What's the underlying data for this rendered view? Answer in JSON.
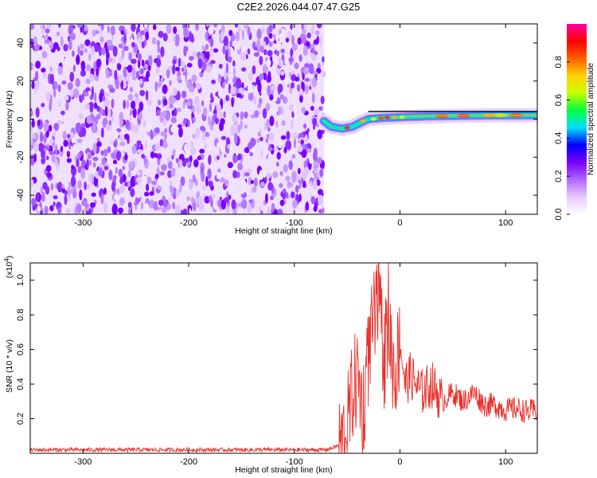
{
  "title": "C2E2.2026.044.07.47.G25",
  "chart_data": [
    {
      "type": "heatmap",
      "xlabel": "Height of straight line (km)",
      "ylabel": "Frequency (Hz)",
      "xlim": [
        -350,
        130
      ],
      "ylim": [
        -50,
        50
      ],
      "xticks": [
        -300,
        -200,
        -100,
        0,
        100
      ],
      "yticks": [
        -40,
        -20,
        0,
        20,
        40
      ],
      "noise_region_x": [
        -350,
        -72
      ],
      "signal_band": [
        {
          "x": -72,
          "y": -1
        },
        {
          "x": -65,
          "y": -4
        },
        {
          "x": -55,
          "y": -5
        },
        {
          "x": -45,
          "y": -4
        },
        {
          "x": -38,
          "y": -2
        },
        {
          "x": -30,
          "y": 0
        },
        {
          "x": -20,
          "y": 0.5
        },
        {
          "x": -10,
          "y": 0.8
        },
        {
          "x": 0,
          "y": 1
        },
        {
          "x": 30,
          "y": 1.5
        },
        {
          "x": 60,
          "y": 1.8
        },
        {
          "x": 90,
          "y": 2
        },
        {
          "x": 130,
          "y": 2
        }
      ],
      "colorbar": {
        "label": "Normalized spectral amplitude",
        "range": [
          0,
          1
        ],
        "ticks": [
          0.0,
          0.2,
          0.4,
          0.6,
          0.8
        ],
        "colors": [
          "#ffffff",
          "#e6c8ff",
          "#b266ff",
          "#7a00ff",
          "#0000ff",
          "#00e0ff",
          "#00ff40",
          "#c8ff00",
          "#ffd200",
          "#ff6000",
          "#ff0000",
          "#ff00a0"
        ]
      },
      "grid": false
    },
    {
      "type": "line",
      "xlabel": "Height of straight line (km)",
      "ylabel": "SNR (10 * v/v)",
      "y_scale_label_base": "(x10",
      "y_scale_label_exp": "4",
      "y_scale_label_close": ")",
      "xlim": [
        -350,
        130
      ],
      "ylim": [
        0,
        1.1
      ],
      "xticks": [
        -300,
        -200,
        -100,
        0,
        100
      ],
      "yticks": [
        0.2,
        0.4,
        0.6,
        0.8,
        1.0
      ],
      "series": [
        {
          "color": "#e8302a",
          "x": [
            -350,
            -300,
            -250,
            -200,
            -150,
            -100,
            -70,
            -55,
            -50,
            -45,
            -40,
            -35,
            -30,
            -25,
            -20,
            -15,
            -10,
            -5,
            0,
            5,
            10,
            20,
            30,
            40,
            50,
            60,
            70,
            80,
            90,
            100,
            110,
            120,
            130
          ],
          "y": [
            0.02,
            0.02,
            0.02,
            0.02,
            0.02,
            0.02,
            0.02,
            0.05,
            0.15,
            0.35,
            0.45,
            0.25,
            0.55,
            0.75,
            0.85,
            0.55,
            0.7,
            0.45,
            0.65,
            0.4,
            0.45,
            0.35,
            0.4,
            0.3,
            0.35,
            0.3,
            0.35,
            0.28,
            0.28,
            0.25,
            0.26,
            0.24,
            0.25
          ]
        }
      ],
      "grid": false
    }
  ]
}
